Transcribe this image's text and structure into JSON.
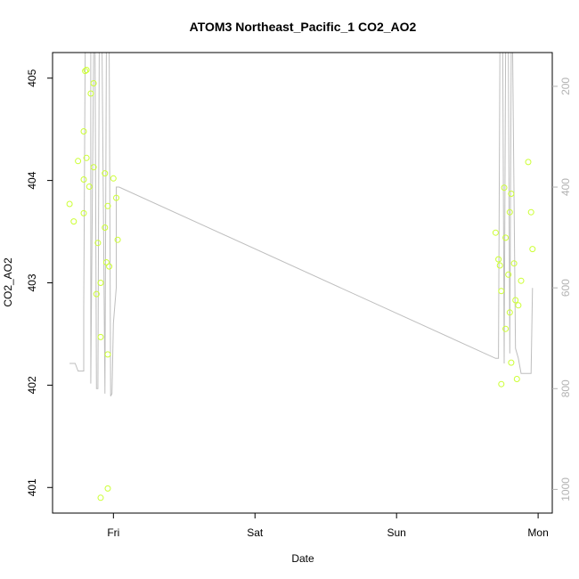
{
  "chart_data": {
    "type": "scatter",
    "title": "ATOM3 Northeast_Pacific_1 CO2_AO2",
    "xlabel": "Date",
    "ylabel": "CO2_AO2",
    "x_ticks": [
      {
        "label": "Fri",
        "x": 0.0
      },
      {
        "label": "Sat",
        "x": 1.0
      },
      {
        "label": "Sun",
        "x": 2.0
      },
      {
        "label": "Mon",
        "x": 3.0
      }
    ],
    "xlim": [
      -0.43,
      3.1
    ],
    "ylim": [
      400.75,
      405.25
    ],
    "y_ticks": [
      401,
      402,
      403,
      404,
      405
    ],
    "y2lim": [
      1047,
      133
    ],
    "y2_ticks": [
      200,
      400,
      600,
      800,
      1000
    ],
    "colors": {
      "point": "#ccff33",
      "line": "#bebebe",
      "axis": "#000000",
      "right_axis": "#b3b3b3"
    },
    "series": [
      {
        "values": [
          [
            -0.31,
            403.77
          ],
          [
            -0.28,
            403.6
          ],
          [
            -0.25,
            404.19
          ],
          [
            -0.21,
            404.48
          ],
          [
            -0.21,
            404.01
          ],
          [
            -0.21,
            403.68
          ],
          [
            -0.2,
            405.07
          ],
          [
            -0.19,
            405.08
          ],
          [
            -0.19,
            404.22
          ],
          [
            -0.17,
            403.94
          ],
          [
            -0.16,
            404.85
          ],
          [
            -0.14,
            404.95
          ],
          [
            -0.14,
            404.13
          ],
          [
            -0.12,
            402.89
          ],
          [
            -0.11,
            403.39
          ],
          [
            -0.09,
            402.47
          ],
          [
            -0.09,
            403.0
          ],
          [
            -0.09,
            400.9
          ],
          [
            -0.06,
            403.54
          ],
          [
            -0.06,
            404.07
          ],
          [
            -0.05,
            403.2
          ],
          [
            -0.04,
            403.75
          ],
          [
            -0.04,
            402.3
          ],
          [
            -0.04,
            400.99
          ],
          [
            -0.03,
            403.16
          ],
          [
            0.0,
            404.02
          ],
          [
            0.02,
            403.83
          ],
          [
            0.03,
            403.42
          ],
          [
            2.7,
            403.49
          ],
          [
            2.72,
            403.23
          ],
          [
            2.73,
            403.17
          ],
          [
            2.74,
            402.92
          ],
          [
            2.74,
            402.01
          ],
          [
            2.76,
            403.93
          ],
          [
            2.77,
            403.44
          ],
          [
            2.77,
            402.55
          ],
          [
            2.79,
            403.08
          ],
          [
            2.8,
            403.69
          ],
          [
            2.8,
            402.71
          ],
          [
            2.81,
            403.87
          ],
          [
            2.81,
            402.22
          ],
          [
            2.83,
            403.19
          ],
          [
            2.84,
            402.83
          ],
          [
            2.85,
            402.06
          ],
          [
            2.86,
            402.78
          ],
          [
            2.88,
            403.02
          ],
          [
            2.93,
            404.18
          ],
          [
            2.95,
            403.69
          ],
          [
            2.96,
            403.33
          ]
        ]
      },
      {
        "values": [
          [
            -0.31,
            750
          ],
          [
            -0.27,
            750
          ],
          [
            -0.25,
            765
          ],
          [
            -0.21,
            765
          ],
          [
            -0.21,
            640
          ],
          [
            -0.2,
            133
          ],
          [
            -0.16,
            133
          ],
          [
            -0.16,
            790
          ],
          [
            -0.14,
            133
          ],
          [
            -0.13,
            133
          ],
          [
            -0.12,
            800
          ],
          [
            -0.11,
            800
          ],
          [
            -0.1,
            133
          ],
          [
            -0.08,
            133
          ],
          [
            -0.06,
            810
          ],
          [
            -0.05,
            133
          ],
          [
            -0.03,
            133
          ],
          [
            -0.02,
            815
          ],
          [
            -0.01,
            810
          ],
          [
            0.0,
            670
          ],
          [
            0.02,
            600
          ],
          [
            0.02,
            400
          ],
          [
            0.04,
            400
          ],
          [
            2.7,
            740
          ],
          [
            2.72,
            740
          ],
          [
            2.73,
            133
          ],
          [
            2.75,
            133
          ],
          [
            2.76,
            750
          ],
          [
            2.77,
            133
          ],
          [
            2.79,
            133
          ],
          [
            2.8,
            730
          ],
          [
            2.81,
            133
          ],
          [
            2.82,
            133
          ],
          [
            2.84,
            720
          ],
          [
            2.86,
            740
          ],
          [
            2.88,
            770
          ],
          [
            2.9,
            770
          ],
          [
            2.93,
            770
          ],
          [
            2.95,
            770
          ],
          [
            2.96,
            600
          ]
        ]
      }
    ]
  }
}
